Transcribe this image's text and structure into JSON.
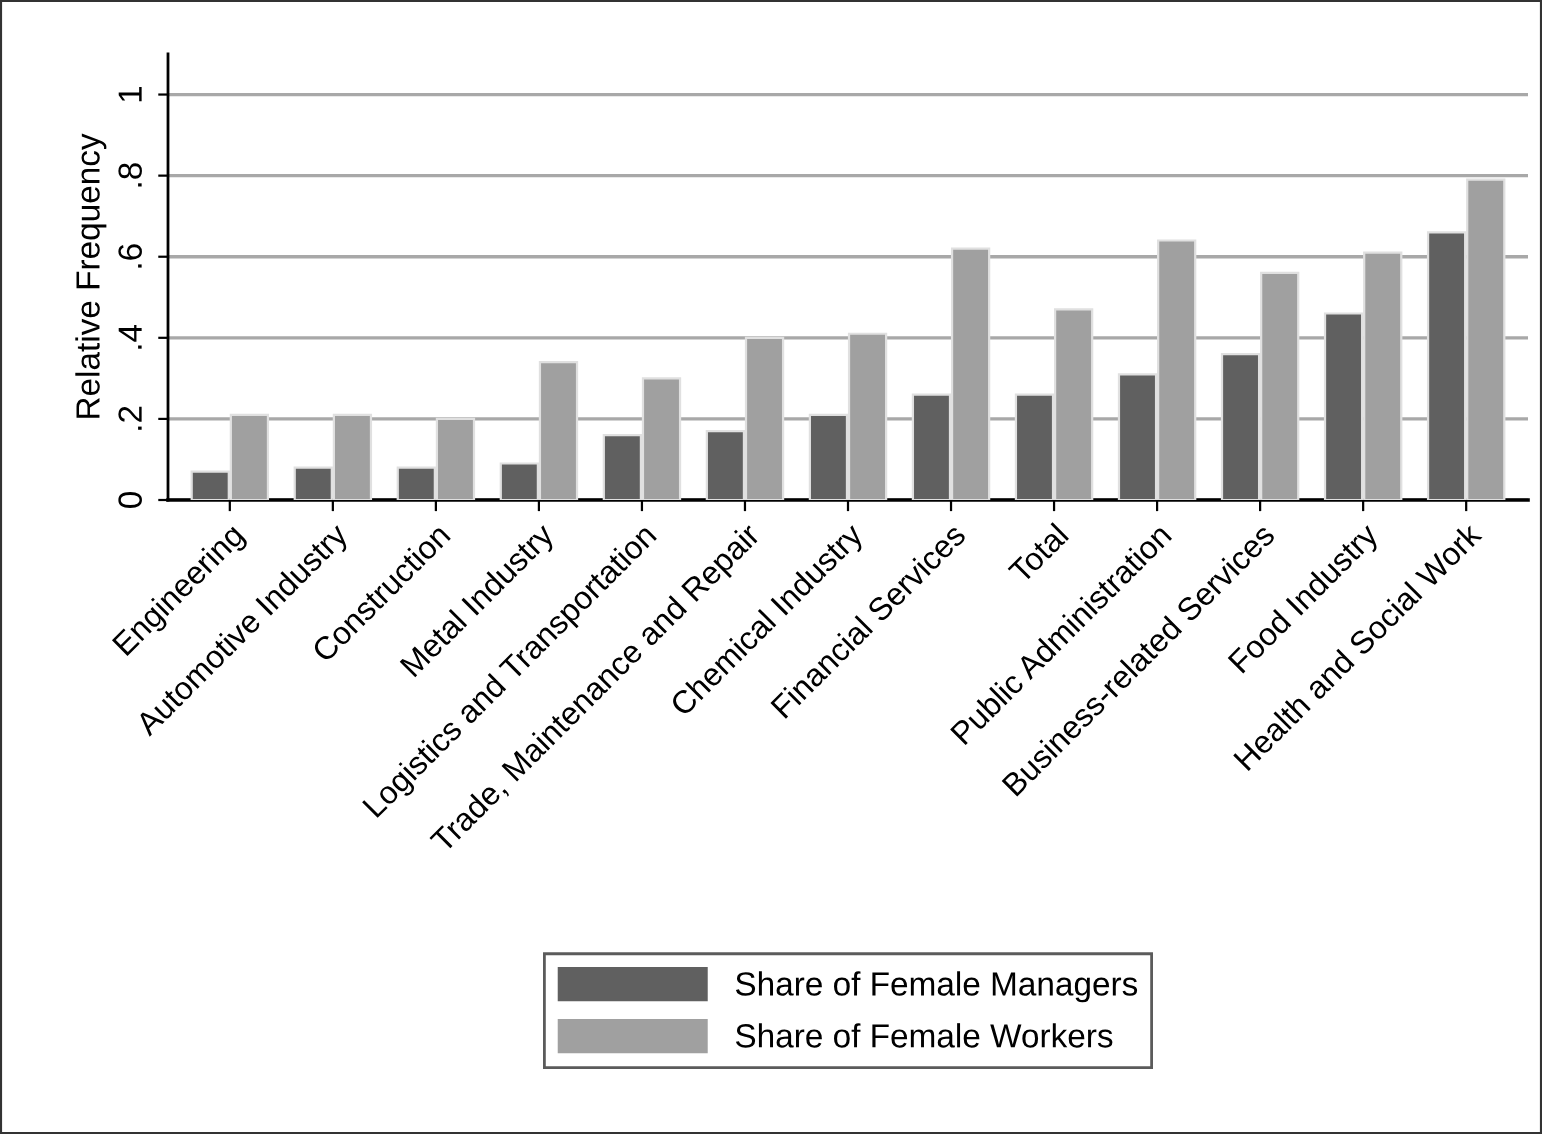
{
  "chart_data": {
    "type": "bar",
    "ylabel": "Relative Frequency",
    "categories": [
      "Engineering",
      "Automotive Industry",
      "Construction",
      "Metal Industry",
      "Logistics and Transportation",
      "Trade, Maintenance and Repair",
      "Chemical Industry",
      "Financial Services",
      "Total",
      "Public Administration",
      "Business-related Services",
      "Food Industry",
      "Health and Social Work"
    ],
    "series": [
      {
        "name": "Share of Female Managers",
        "color": "#606060",
        "values": [
          0.07,
          0.08,
          0.08,
          0.09,
          0.16,
          0.17,
          0.21,
          0.26,
          0.26,
          0.31,
          0.36,
          0.46,
          0.66
        ]
      },
      {
        "name": "Share of Female Workers",
        "color": "#a0a0a0",
        "values": [
          0.21,
          0.21,
          0.2,
          0.34,
          0.3,
          0.4,
          0.41,
          0.62,
          0.47,
          0.64,
          0.56,
          0.61,
          0.79
        ]
      }
    ],
    "ylim": [
      0,
      1.1
    ],
    "yticks": [
      0,
      {
        "value": 0.2,
        "label": ".2"
      },
      {
        "value": 0.4,
        "label": ".4"
      },
      {
        "value": 0.6,
        "label": ".6"
      },
      {
        "value": 0.8,
        "label": ".8"
      },
      1
    ],
    "grid": "y",
    "legend": "bottom"
  }
}
